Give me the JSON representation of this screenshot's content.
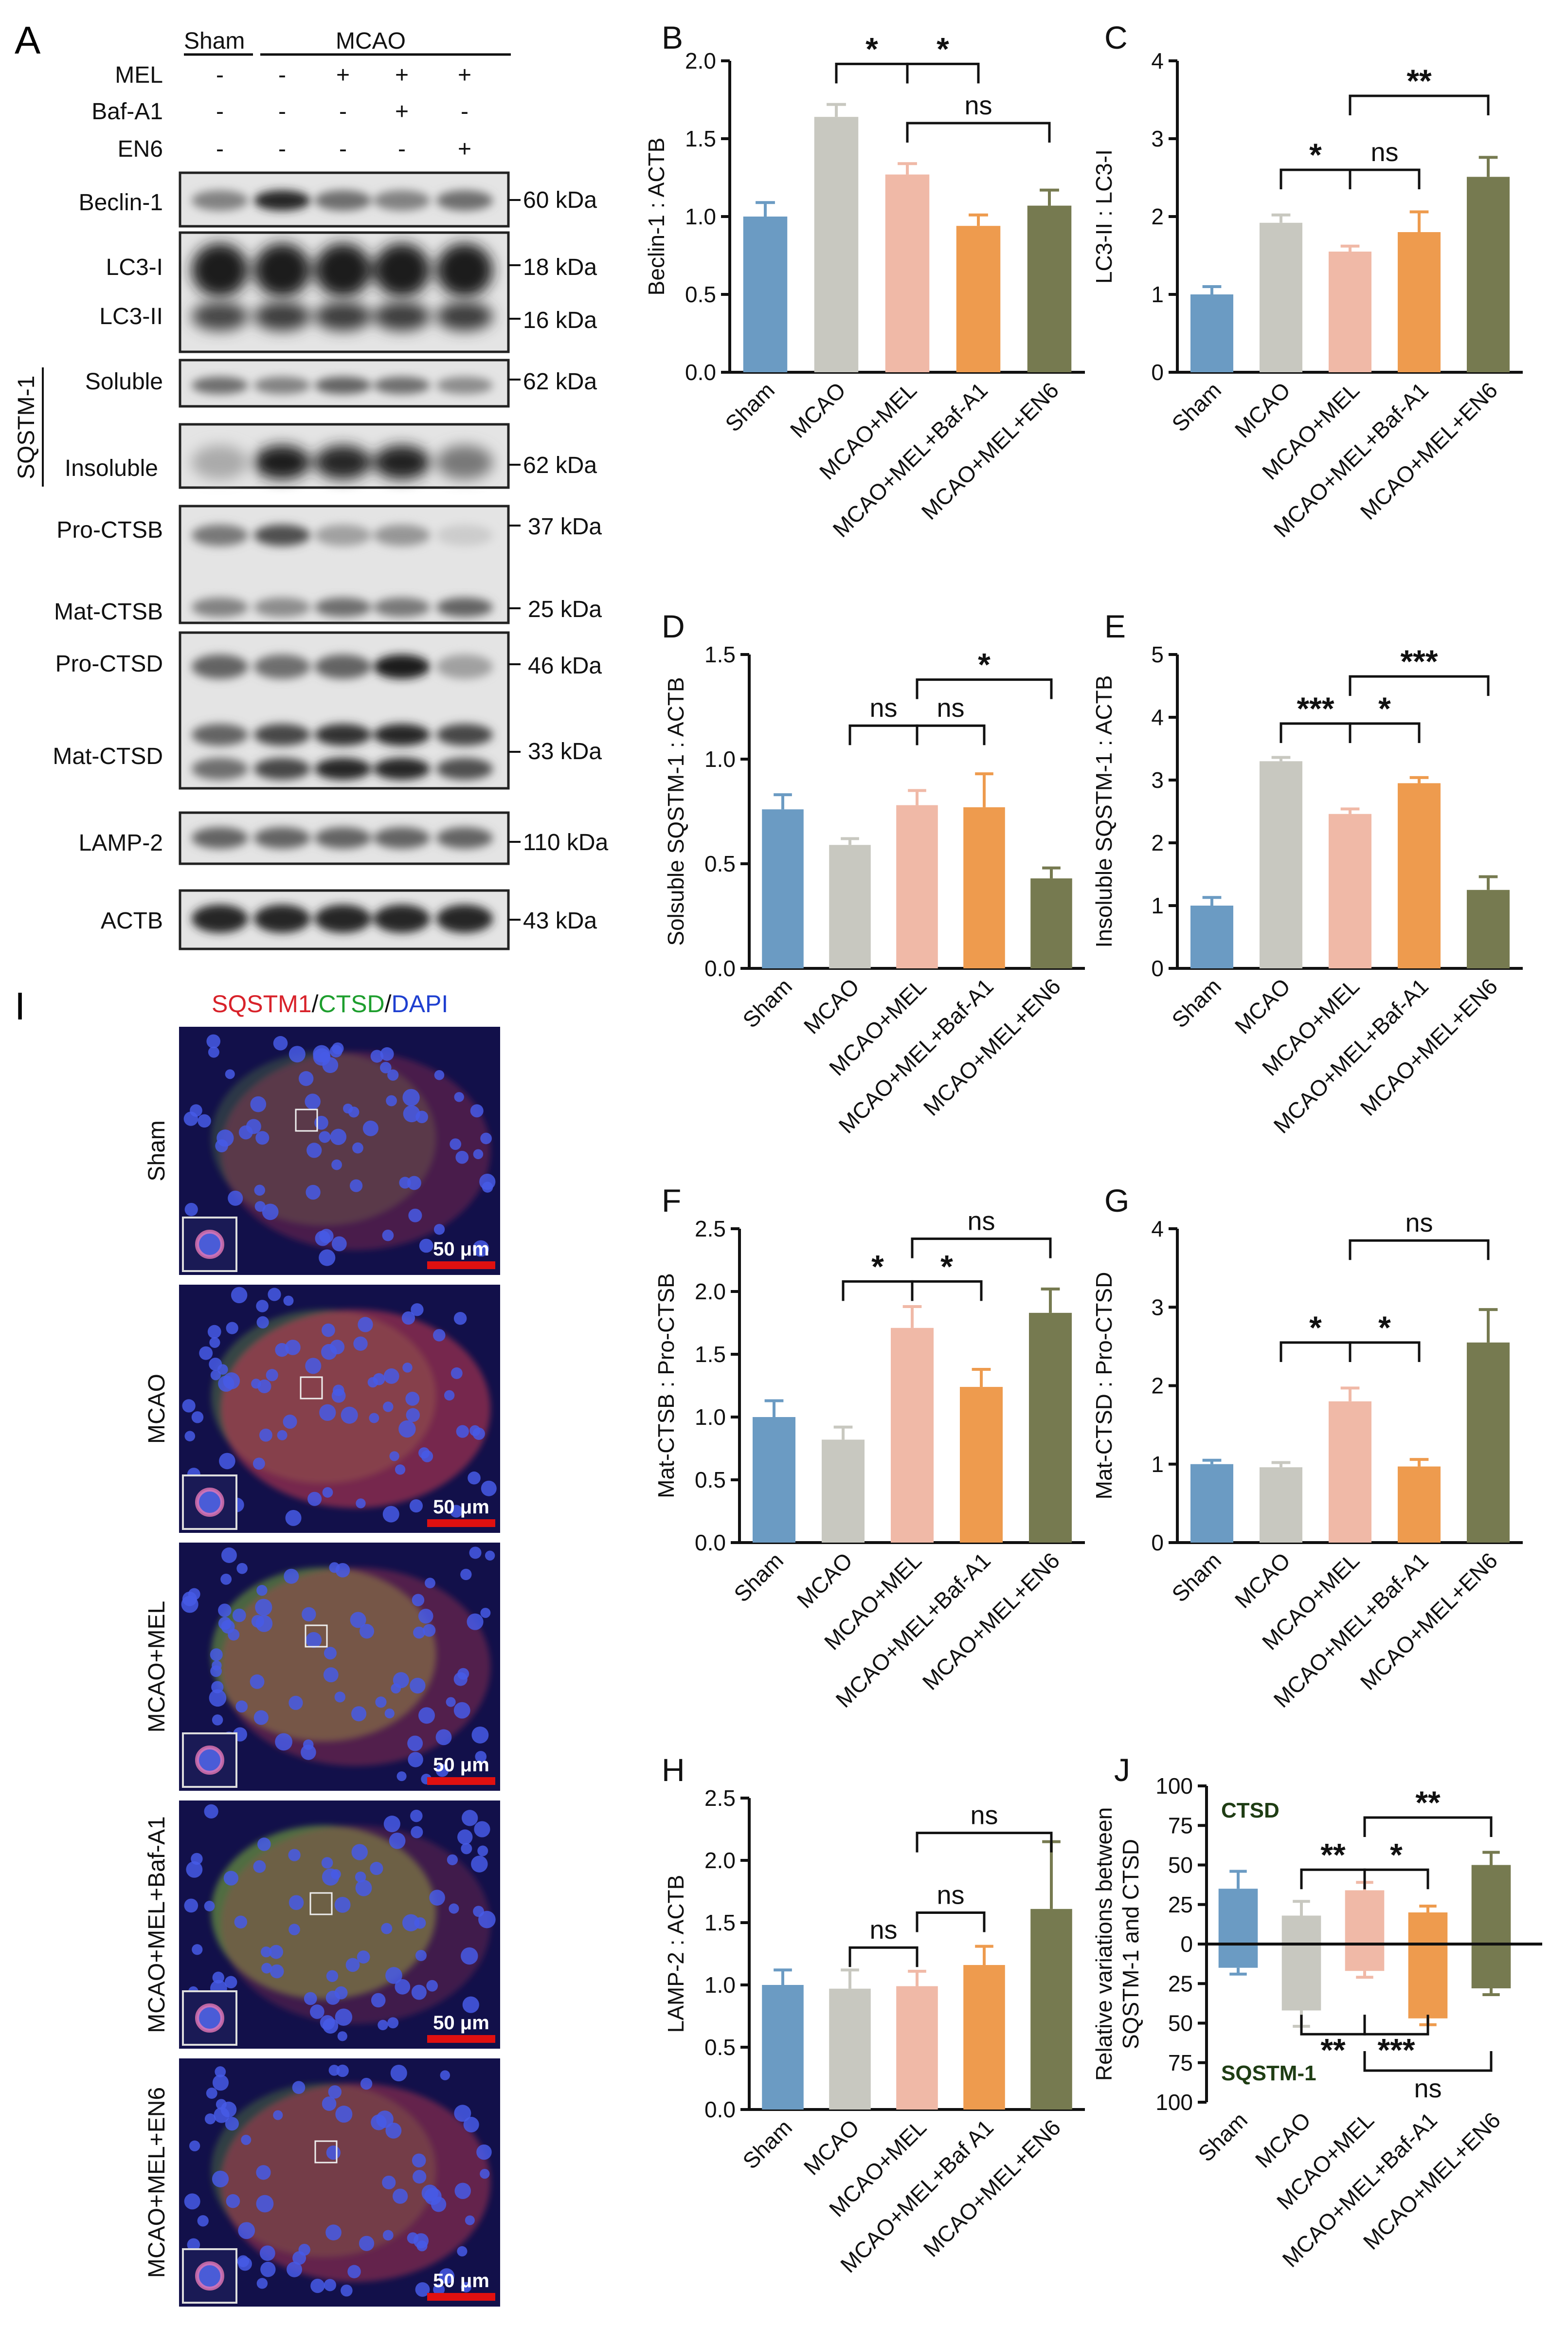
{
  "colors": {
    "Sham": "#6b9bc3",
    "MCAO": "#c8c8c0",
    "MCAO+MEL": "#f0b9a7",
    "MCAO+MEL+Baf-A1": "#ee9b4e",
    "MCAO+MEL+EN6": "#767a50",
    "ctsd_label": "#1f3d14",
    "sqstm1_label": "#1f3d14",
    "title_red": "#d8222a",
    "title_green": "#1e9e2e",
    "title_blue": "#1e3fd0",
    "scalebar": "#e01010"
  },
  "western": {
    "panel_label": "A",
    "header": {
      "sham": "Sham",
      "mcao": "MCAO"
    },
    "treatment_rows": [
      {
        "label": "MEL",
        "marks": [
          "-",
          "-",
          "+",
          "+",
          "+"
        ]
      },
      {
        "label": "Baf-A1",
        "marks": [
          "-",
          "-",
          "-",
          "+",
          "-"
        ]
      },
      {
        "label": "EN6",
        "marks": [
          "-",
          "-",
          "-",
          "-",
          "+"
        ]
      }
    ],
    "sqstm_group": "SQSTM-1",
    "blot_labels": [
      "Beclin-1",
      "LC3-I",
      "LC3-II",
      "Soluble",
      "Insoluble",
      "Pro-CTSB",
      "Mat-CTSB",
      "Pro-CTSD",
      "Mat-CTSD",
      "LAMP-2",
      "ACTB"
    ],
    "kda": [
      "60 kDa",
      "18 kDa",
      "16 kDa",
      "62 kDa",
      "62 kDa",
      "37 kDa",
      "25 kDa",
      "46 kDa",
      "33 kDa",
      "110 kDa",
      "43 kDa"
    ]
  },
  "micro": {
    "panel_label": "I",
    "title": {
      "p1": "SQSTM1",
      "s1": "/",
      "p2": "CTSD",
      "s2": "/",
      "p3": "DAPI"
    },
    "rows": [
      "Sham",
      "MCAO",
      "MCAO+MEL",
      "MCAO+MEL+Baf-A1",
      "MCAO+MEL+EN6"
    ],
    "scalebar": "50 μm"
  },
  "chart_data": [
    {
      "id": "B",
      "type": "bar",
      "ylabel": "Beclin-1 : ACTB",
      "ylim": [
        0,
        2.0
      ],
      "ticks": [
        "0.0",
        "0.5",
        "1.0",
        "1.5",
        "2.0"
      ],
      "categories": [
        "Sham",
        "MCAO",
        "MCAO+MEL",
        "MCAO+MEL+Baf-A1",
        "MCAO+MEL+EN6"
      ],
      "values": [
        1.0,
        1.64,
        1.27,
        0.94,
        1.07
      ],
      "errors": [
        0.09,
        0.08,
        0.07,
        0.07,
        0.1
      ],
      "sig": [
        {
          "a": 1,
          "b": 2,
          "y": 1.98,
          "text": "*"
        },
        {
          "a": 2,
          "b": 3,
          "y": 1.98,
          "text": "*"
        },
        {
          "a": 2,
          "b": 4,
          "y": 1.6,
          "text": "ns"
        }
      ]
    },
    {
      "id": "C",
      "type": "bar",
      "ylabel": "LC3-II : LC3-I",
      "ylim": [
        0,
        4
      ],
      "ticks": [
        "0",
        "1",
        "2",
        "3",
        "4"
      ],
      "categories": [
        "Sham",
        "MCAO",
        "MCAO+MEL",
        "MCAO+MEL+Baf-A1",
        "MCAO+MEL+EN6"
      ],
      "values": [
        1.0,
        1.92,
        1.55,
        1.8,
        2.51
      ],
      "errors": [
        0.1,
        0.1,
        0.07,
        0.26,
        0.25
      ],
      "sig": [
        {
          "a": 1,
          "b": 2,
          "y": 2.6,
          "text": "*"
        },
        {
          "a": 2,
          "b": 3,
          "y": 2.6,
          "text": "ns"
        },
        {
          "a": 2,
          "b": 4,
          "y": 3.55,
          "text": "**"
        }
      ]
    },
    {
      "id": "D",
      "type": "bar",
      "ylabel": "Solsuble SQSTM-1 : ACTB",
      "ylim": [
        0,
        1.5
      ],
      "ticks": [
        "0.0",
        "0.5",
        "1.0",
        "1.5"
      ],
      "categories": [
        "Sham",
        "MCAO",
        "MCAO+MEL",
        "MCAO+MEL+Baf-A1",
        "MCAO+MEL+EN6"
      ],
      "values": [
        0.76,
        0.59,
        0.78,
        0.77,
        0.43
      ],
      "errors": [
        0.07,
        0.03,
        0.07,
        0.16,
        0.05
      ],
      "sig": [
        {
          "a": 1,
          "b": 2,
          "y": 1.16,
          "text": "ns"
        },
        {
          "a": 2,
          "b": 3,
          "y": 1.16,
          "text": "ns"
        },
        {
          "a": 2,
          "b": 4,
          "y": 1.38,
          "text": "*"
        }
      ]
    },
    {
      "id": "E",
      "type": "bar",
      "ylabel": "Insoluble SQSTM-1 : ACTB",
      "ylim": [
        0,
        5
      ],
      "ticks": [
        "0",
        "1",
        "2",
        "3",
        "4",
        "5"
      ],
      "categories": [
        "Sham",
        "MCAO",
        "MCAO+MEL",
        "MCAO+MEL+Baf-A1",
        "MCAO+MEL+EN6"
      ],
      "values": [
        1.0,
        3.3,
        2.46,
        2.95,
        1.25
      ],
      "errors": [
        0.13,
        0.06,
        0.08,
        0.09,
        0.21
      ],
      "sig": [
        {
          "a": 1,
          "b": 2,
          "y": 3.9,
          "text": "***"
        },
        {
          "a": 2,
          "b": 3,
          "y": 3.9,
          "text": "*"
        },
        {
          "a": 2,
          "b": 4,
          "y": 4.65,
          "text": "***"
        }
      ]
    },
    {
      "id": "F",
      "type": "bar",
      "ylabel": "Mat-CTSB : Pro-CTSB",
      "ylim": [
        0,
        2.5
      ],
      "ticks": [
        "0.0",
        "0.5",
        "1.0",
        "1.5",
        "2.0",
        "2.5"
      ],
      "categories": [
        "Sham",
        "MCAO",
        "MCAO+MEL",
        "MCAO+MEL+Baf-A1",
        "MCAO+MEL+EN6"
      ],
      "values": [
        1.0,
        0.82,
        1.71,
        1.24,
        1.83
      ],
      "errors": [
        0.13,
        0.1,
        0.17,
        0.14,
        0.19
      ],
      "sig": [
        {
          "a": 1,
          "b": 2,
          "y": 2.08,
          "text": "*"
        },
        {
          "a": 2,
          "b": 3,
          "y": 2.08,
          "text": "*"
        },
        {
          "a": 2,
          "b": 4,
          "y": 2.42,
          "text": "ns"
        }
      ]
    },
    {
      "id": "G",
      "type": "bar",
      "ylabel": "Mat-CTSD : Pro-CTSD",
      "ylim": [
        0,
        4
      ],
      "ticks": [
        "0",
        "1",
        "2",
        "3",
        "4"
      ],
      "categories": [
        "Sham",
        "MCAO",
        "MCAO+MEL",
        "MCAO+MEL+Baf-A1",
        "MCAO+MEL+EN6"
      ],
      "values": [
        1.0,
        0.96,
        1.8,
        0.97,
        2.55
      ],
      "errors": [
        0.05,
        0.06,
        0.17,
        0.09,
        0.42
      ],
      "sig": [
        {
          "a": 1,
          "b": 2,
          "y": 2.55,
          "text": "*"
        },
        {
          "a": 2,
          "b": 3,
          "y": 2.55,
          "text": "*"
        },
        {
          "a": 2,
          "b": 4,
          "y": 3.85,
          "text": "ns"
        }
      ]
    },
    {
      "id": "H",
      "type": "bar",
      "ylabel": "LAMP-2 : ACTB",
      "ylim": [
        0,
        2.5
      ],
      "ticks": [
        "0.0",
        "0.5",
        "1.0",
        "1.5",
        "2.0",
        "2.5"
      ],
      "categories": [
        "Sham",
        "MCAO",
        "MCAO+MEL",
        "MCAO+MEL+Baf A1",
        "MCAO+MEL+EN6"
      ],
      "values": [
        1.0,
        0.97,
        0.99,
        1.16,
        1.61
      ],
      "errors": [
        0.12,
        0.15,
        0.12,
        0.15,
        0.54
      ],
      "sig": [
        {
          "a": 1,
          "b": 2,
          "y": 1.3,
          "text": "ns"
        },
        {
          "a": 2,
          "b": 3,
          "y": 1.58,
          "text": "ns"
        },
        {
          "a": 2,
          "b": 4,
          "y": 2.22,
          "text": "ns"
        }
      ]
    },
    {
      "id": "J",
      "type": "bar",
      "ylabel": "Relative variations between SQSTM-1 and CTSD",
      "ylim": [
        -100,
        100
      ],
      "ticks": [
        "100",
        "75",
        "50",
        "25",
        "0",
        "25",
        "50",
        "75",
        "100"
      ],
      "tick_values": [
        -100,
        -75,
        -50,
        -25,
        0,
        25,
        50,
        75,
        100
      ],
      "categories": [
        "Sham",
        "MCAO",
        "MCAO+MEL",
        "MCAO+MEL+Baf-A1",
        "MCAO+MEL+EN6"
      ],
      "series": [
        {
          "name": "CTSD",
          "values": [
            35,
            18,
            34,
            20,
            50
          ],
          "errors": [
            11,
            9,
            5,
            4,
            8
          ]
        },
        {
          "name": "SQSTM-1",
          "values": [
            -15,
            -42,
            -17,
            -47,
            -28
          ],
          "errors": [
            4,
            10,
            4,
            4,
            4
          ]
        }
      ],
      "sig": [
        {
          "a": 1,
          "b": 2,
          "y": 47,
          "text": "**"
        },
        {
          "a": 2,
          "b": 3,
          "y": 47,
          "text": "*"
        },
        {
          "a": 2,
          "b": 4,
          "y": 80,
          "text": "**"
        },
        {
          "a": 1,
          "b": 2,
          "y": -57,
          "text": "**"
        },
        {
          "a": 2,
          "b": 3,
          "y": -57,
          "text": "***"
        },
        {
          "a": 2,
          "b": 4,
          "y": -80,
          "text": "ns"
        }
      ]
    }
  ]
}
